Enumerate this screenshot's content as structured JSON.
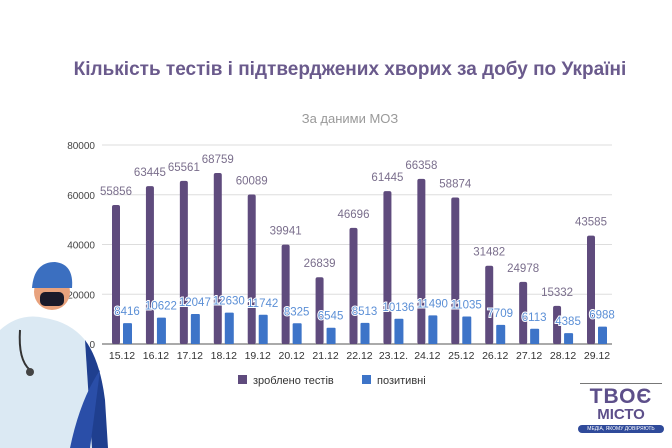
{
  "chart_data": {
    "type": "bar",
    "title": "Кількість тестів і підтверджених хворих за добу по Україні",
    "subtitle": "За даними МОЗ",
    "categories": [
      "15.12",
      "16.12",
      "17.12",
      "18.12",
      "19.12",
      "20.12",
      "21.12",
      "22.12",
      "23.12.",
      "24.12",
      "25.12",
      "26.12",
      "27.12",
      "28.12",
      "29.12"
    ],
    "series": [
      {
        "name": "зроблено тестів",
        "color": "#5f4b7d",
        "label_color": "#7a6e8c",
        "values": [
          55856,
          63445,
          65561,
          68759,
          60089,
          39941,
          26839,
          46696,
          61445,
          66358,
          58874,
          31482,
          24978,
          15332,
          43585
        ]
      },
      {
        "name": "позитивні",
        "color": "#3d74c8",
        "label_color": "#5b8fd6",
        "values": [
          8416,
          10622,
          12047,
          12630,
          11742,
          8325,
          6545,
          8513,
          10136,
          11490,
          11035,
          7709,
          6113,
          4385,
          6988
        ]
      }
    ],
    "yticks": [
      "0",
      "20000",
      "40000",
      "60000",
      "80000"
    ],
    "ylim": [
      0,
      80000
    ],
    "grid": true,
    "legend": "bottom"
  },
  "logo": {
    "line1": "ТВОЄ",
    "line2": "МІСТО",
    "tagline": "МЕДІА, ЯКОМУ ДОВІРЯЮТЬ"
  }
}
